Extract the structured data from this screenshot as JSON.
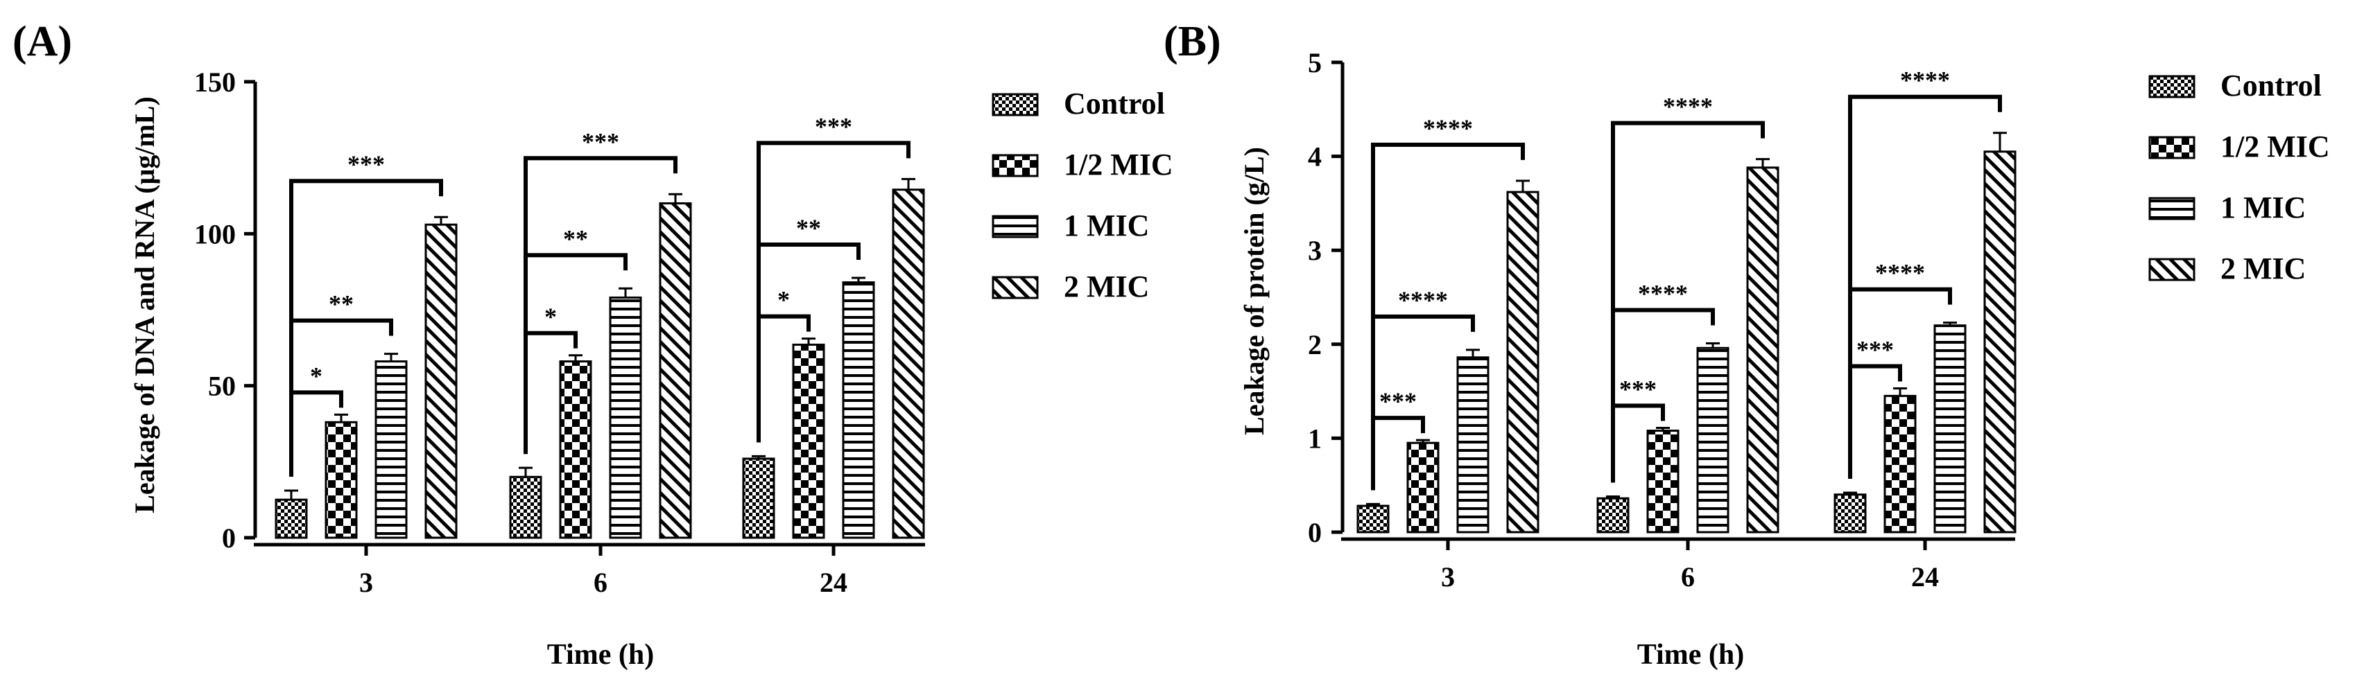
{
  "chart_data": [
    {
      "type": "bar",
      "panel_label": "(A)",
      "title": "",
      "xlabel": "Time (h)",
      "ylabel": "Leakage of DNA and RNA (μg/mL)",
      "ylim": [
        0,
        150
      ],
      "yticks": [
        "0",
        "50",
        "100",
        "150"
      ],
      "categories": [
        "3",
        "6",
        "24"
      ],
      "series": [
        {
          "name": "Control",
          "values": [
            12.5,
            20,
            26
          ],
          "errors": [
            3,
            3,
            0.8
          ]
        },
        {
          "name": "1/2 MIC",
          "values": [
            38,
            58,
            63.5
          ],
          "errors": [
            2.5,
            2,
            2
          ]
        },
        {
          "name": "1 MIC",
          "values": [
            58,
            79,
            84
          ],
          "errors": [
            2.5,
            3,
            1.5
          ]
        },
        {
          "name": "2 MIC",
          "values": [
            103,
            110,
            114.5
          ],
          "errors": [
            2.5,
            3,
            3.5
          ]
        }
      ],
      "significance": [
        {
          "category": 0,
          "to_series": 1,
          "label": "*"
        },
        {
          "category": 0,
          "to_series": 2,
          "label": "**"
        },
        {
          "category": 0,
          "to_series": 3,
          "label": "***"
        },
        {
          "category": 1,
          "to_series": 1,
          "label": "*"
        },
        {
          "category": 1,
          "to_series": 2,
          "label": "**"
        },
        {
          "category": 1,
          "to_series": 3,
          "label": "***"
        },
        {
          "category": 2,
          "to_series": 1,
          "label": "*"
        },
        {
          "category": 2,
          "to_series": 2,
          "label": "**"
        },
        {
          "category": 2,
          "to_series": 3,
          "label": "***"
        }
      ],
      "legend": [
        "Control",
        "1/2 MIC",
        "1 MIC",
        "2 MIC"
      ],
      "legend_position": "right",
      "grid": false
    },
    {
      "type": "bar",
      "panel_label": "(B)",
      "title": "",
      "xlabel": "Time (h)",
      "ylabel": "Leakage of protein (g/L)",
      "ylim": [
        0,
        5
      ],
      "yticks": [
        "0",
        "1",
        "2",
        "3",
        "4",
        "5"
      ],
      "categories": [
        "3",
        "6",
        "24"
      ],
      "series": [
        {
          "name": "Control",
          "values": [
            0.28,
            0.36,
            0.4
          ],
          "errors": [
            0.02,
            0.02,
            0.02
          ]
        },
        {
          "name": "1/2 MIC",
          "values": [
            0.95,
            1.08,
            1.45
          ],
          "errors": [
            0.03,
            0.03,
            0.08
          ]
        },
        {
          "name": "1 MIC",
          "values": [
            1.86,
            1.96,
            2.2
          ],
          "errors": [
            0.08,
            0.05,
            0.03
          ]
        },
        {
          "name": "2 MIC",
          "values": [
            3.62,
            3.88,
            4.05
          ],
          "errors": [
            0.12,
            0.09,
            0.2
          ]
        }
      ],
      "significance": [
        {
          "category": 0,
          "to_series": 1,
          "label": "***"
        },
        {
          "category": 0,
          "to_series": 2,
          "label": "****"
        },
        {
          "category": 0,
          "to_series": 3,
          "label": "****"
        },
        {
          "category": 1,
          "to_series": 1,
          "label": "***"
        },
        {
          "category": 1,
          "to_series": 2,
          "label": "****"
        },
        {
          "category": 1,
          "to_series": 3,
          "label": "****"
        },
        {
          "category": 2,
          "to_series": 1,
          "label": "***"
        },
        {
          "category": 2,
          "to_series": 2,
          "label": "****"
        },
        {
          "category": 2,
          "to_series": 3,
          "label": "****"
        }
      ],
      "legend": [
        "Control",
        "1/2 MIC",
        "1 MIC",
        "2 MIC"
      ],
      "legend_position": "right",
      "grid": false
    }
  ]
}
